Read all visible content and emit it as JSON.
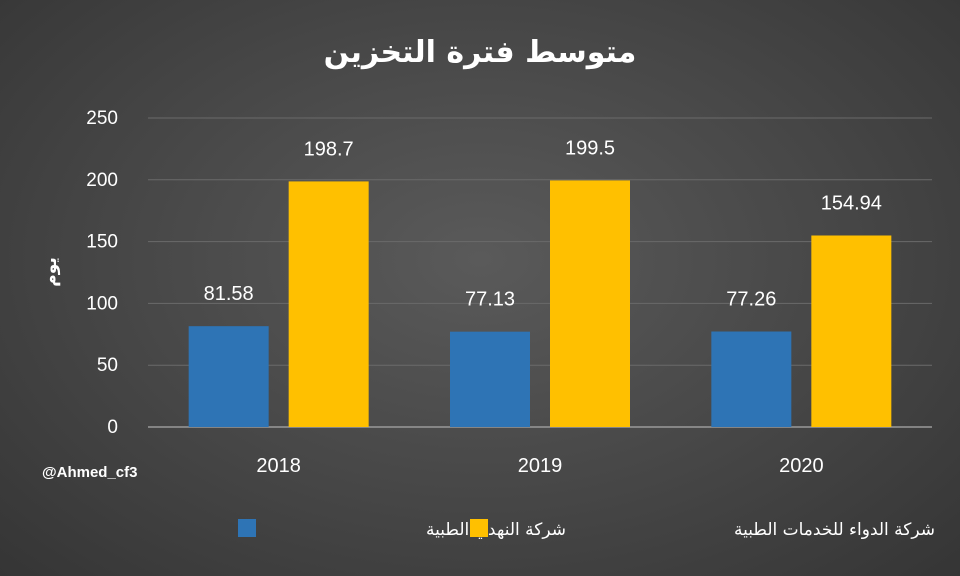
{
  "chart_data": {
    "type": "bar",
    "title": "متوسط فترة التخزين",
    "ylabel": "يوم",
    "xlabel": "",
    "categories": [
      "2018",
      "2019",
      "2020"
    ],
    "ylim": [
      0,
      250
    ],
    "yticks": [
      0,
      50,
      100,
      150,
      200,
      250
    ],
    "grid": true,
    "legend_position": "bottom",
    "series": [
      {
        "name": "شركة النهدي الطبية",
        "color": "#2E74B5",
        "values": [
          81.58,
          77.13,
          77.26
        ],
        "labels": [
          "81.58",
          "77.13",
          "77.26"
        ]
      },
      {
        "name": "شركة الدواء للخدمات الطبية",
        "color": "#FFC000",
        "values": [
          198.7,
          199.5,
          154.94
        ],
        "labels": [
          "198.7",
          "199.5",
          "154.94"
        ]
      }
    ]
  },
  "watermark": "@Ahmed_cf3"
}
